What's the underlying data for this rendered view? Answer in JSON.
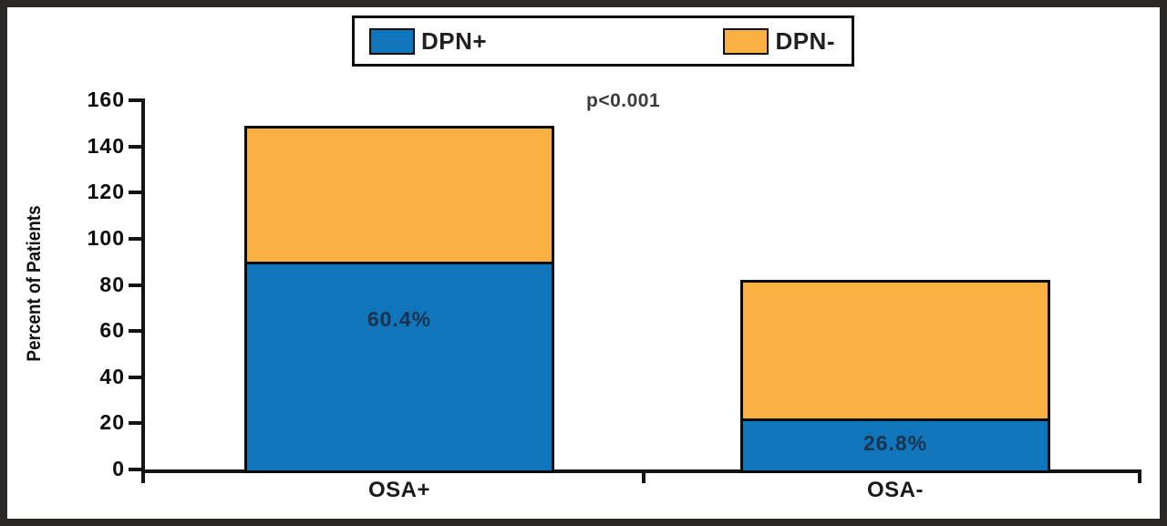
{
  "chart_data": {
    "type": "bar",
    "stacked": true,
    "title": "",
    "categories": [
      "OSA+",
      "OSA-"
    ],
    "series": [
      {
        "name": "DPN+",
        "color": "#1175bc",
        "values": [
          90,
          22
        ]
      },
      {
        "name": "DPN-",
        "color": "#fbb042",
        "values": [
          59,
          60
        ]
      }
    ],
    "bar_totals": [
      149,
      82
    ],
    "bar_labels": [
      "60.4%",
      "26.8%"
    ],
    "annotation": "p<0.001",
    "xlabel": "",
    "ylabel": "Percent of Patients",
    "ylim": [
      0,
      160
    ],
    "yticks": [
      0,
      20,
      40,
      60,
      80,
      100,
      120,
      140,
      160
    ],
    "grid": false,
    "legend_position": "top-center",
    "axis_color": "#141414",
    "bar_border_color": "#0b0b0b",
    "pct_label_color": "#17334d"
  }
}
